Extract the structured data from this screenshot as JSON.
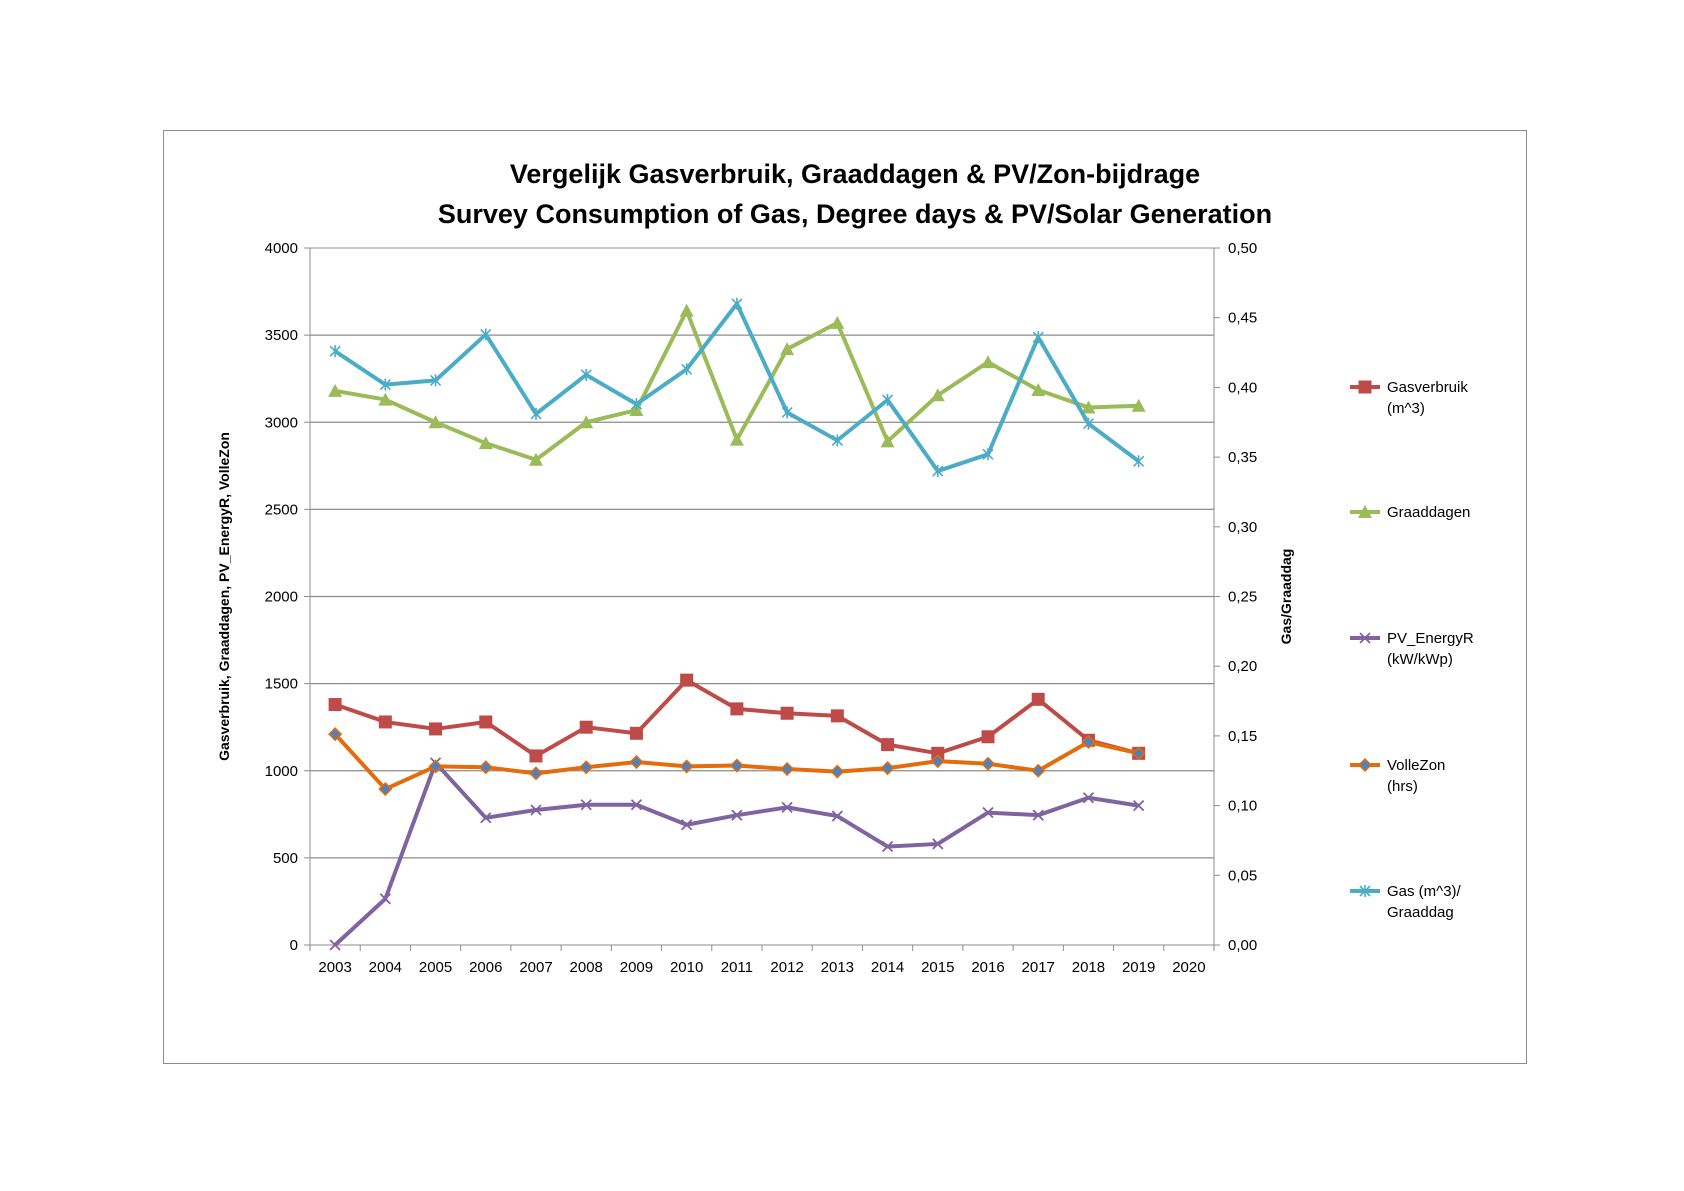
{
  "chart_data": {
    "type": "line",
    "title_lines": [
      "Vergelijk Gasverbruik, Graaddagen & PV/Zon-bijdrage",
      "Survey Consumption of Gas, Degree days & PV/Solar Generation"
    ],
    "ylabel_left": "Gasverbruik,  Graaddagen, PV_EnergyR, VolleZon",
    "ylabel_right": "Gas/Graaddag",
    "categories": [
      "2003",
      "2004",
      "2005",
      "2006",
      "2007",
      "2008",
      "2009",
      "2010",
      "2011",
      "2012",
      "2013",
      "2014",
      "2015",
      "2016",
      "2017",
      "2018",
      "2019",
      "2020"
    ],
    "ylim_left": [
      0,
      4000
    ],
    "ylim_right": [
      0,
      0.5
    ],
    "yticks_left": [
      "0",
      "500",
      "1000",
      "1500",
      "2000",
      "2500",
      "3000",
      "3500",
      "4000"
    ],
    "yticks_right": [
      "0,00",
      "0,05",
      "0,10",
      "0,15",
      "0,20",
      "0,25",
      "0,30",
      "0,35",
      "0,40",
      "0,45",
      "0,50"
    ],
    "grid": true,
    "legend_position": "right",
    "series": [
      {
        "name_lines": [
          "Gasverbruik",
          "(m^3)"
        ],
        "axis": "left",
        "color": "#be4b48",
        "marker": "square",
        "values": [
          1380,
          1280,
          1240,
          1280,
          1085,
          1250,
          1215,
          1520,
          1355,
          1330,
          1315,
          1150,
          1100,
          1195,
          1410,
          1175,
          1100,
          null
        ]
      },
      {
        "name_lines": [
          "Graaddagen"
        ],
        "axis": "left",
        "color": "#9bbb59",
        "marker": "triangle",
        "values": [
          3180,
          3130,
          3000,
          2880,
          2785,
          3000,
          3070,
          3640,
          2900,
          3420,
          3570,
          2890,
          3155,
          3345,
          3185,
          3085,
          3095,
          null
        ]
      },
      {
        "name_lines": [
          "PV_EnergyR",
          "(kW/kWp)"
        ],
        "axis": "left",
        "color": "#8064a2",
        "marker": "x",
        "values": [
          0,
          265,
          1045,
          730,
          775,
          805,
          805,
          690,
          745,
          790,
          740,
          565,
          580,
          760,
          745,
          845,
          800,
          null
        ]
      },
      {
        "name_lines": [
          "VolleZon",
          "(hrs)"
        ],
        "axis": "left",
        "color": "#e46c0a",
        "marker": "diamond",
        "values": [
          1210,
          895,
          1025,
          1020,
          985,
          1020,
          1050,
          1025,
          1030,
          1010,
          995,
          1015,
          1055,
          1040,
          1000,
          1165,
          1100,
          null
        ]
      },
      {
        "name_lines": [
          "Gas (m^3)/",
          "Graaddag"
        ],
        "axis": "right",
        "color": "#4bacc6",
        "marker": "star",
        "values": [
          0.426,
          0.402,
          0.405,
          0.438,
          0.381,
          0.409,
          0.388,
          0.413,
          0.46,
          0.382,
          0.362,
          0.391,
          0.34,
          0.352,
          0.436,
          0.374,
          0.347,
          null
        ]
      }
    ]
  }
}
